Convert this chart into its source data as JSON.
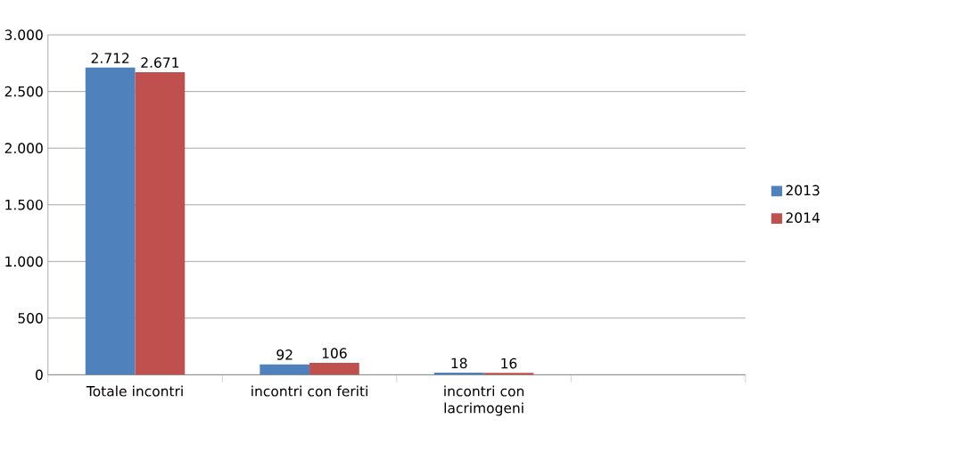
{
  "chart_data": {
    "type": "bar",
    "categories": [
      "Totale incontri",
      "incontri con feriti",
      "incontri con lacrimogeni",
      null
    ],
    "series": [
      {
        "name": "2013",
        "color": "#4f81bd",
        "values": [
          2712,
          92,
          18,
          null
        ],
        "value_labels": [
          "2.712",
          "92",
          "18",
          null
        ]
      },
      {
        "name": "2014",
        "color": "#c0504d",
        "values": [
          2671,
          106,
          16,
          null
        ],
        "value_labels": [
          "2.671",
          "106",
          "16",
          null
        ]
      }
    ],
    "ylim": [
      0,
      3000
    ],
    "yticks": [
      0,
      500,
      {
        "value": 1000,
        "label": "1.000"
      },
      {
        "value": 1500,
        "label": "1.500"
      },
      {
        "value": 2000,
        "label": "2.000"
      },
      {
        "value": 2500,
        "label": "2.500"
      },
      {
        "value": 3000,
        "label": "3.000"
      }
    ],
    "grid": "y",
    "legend": "right"
  }
}
